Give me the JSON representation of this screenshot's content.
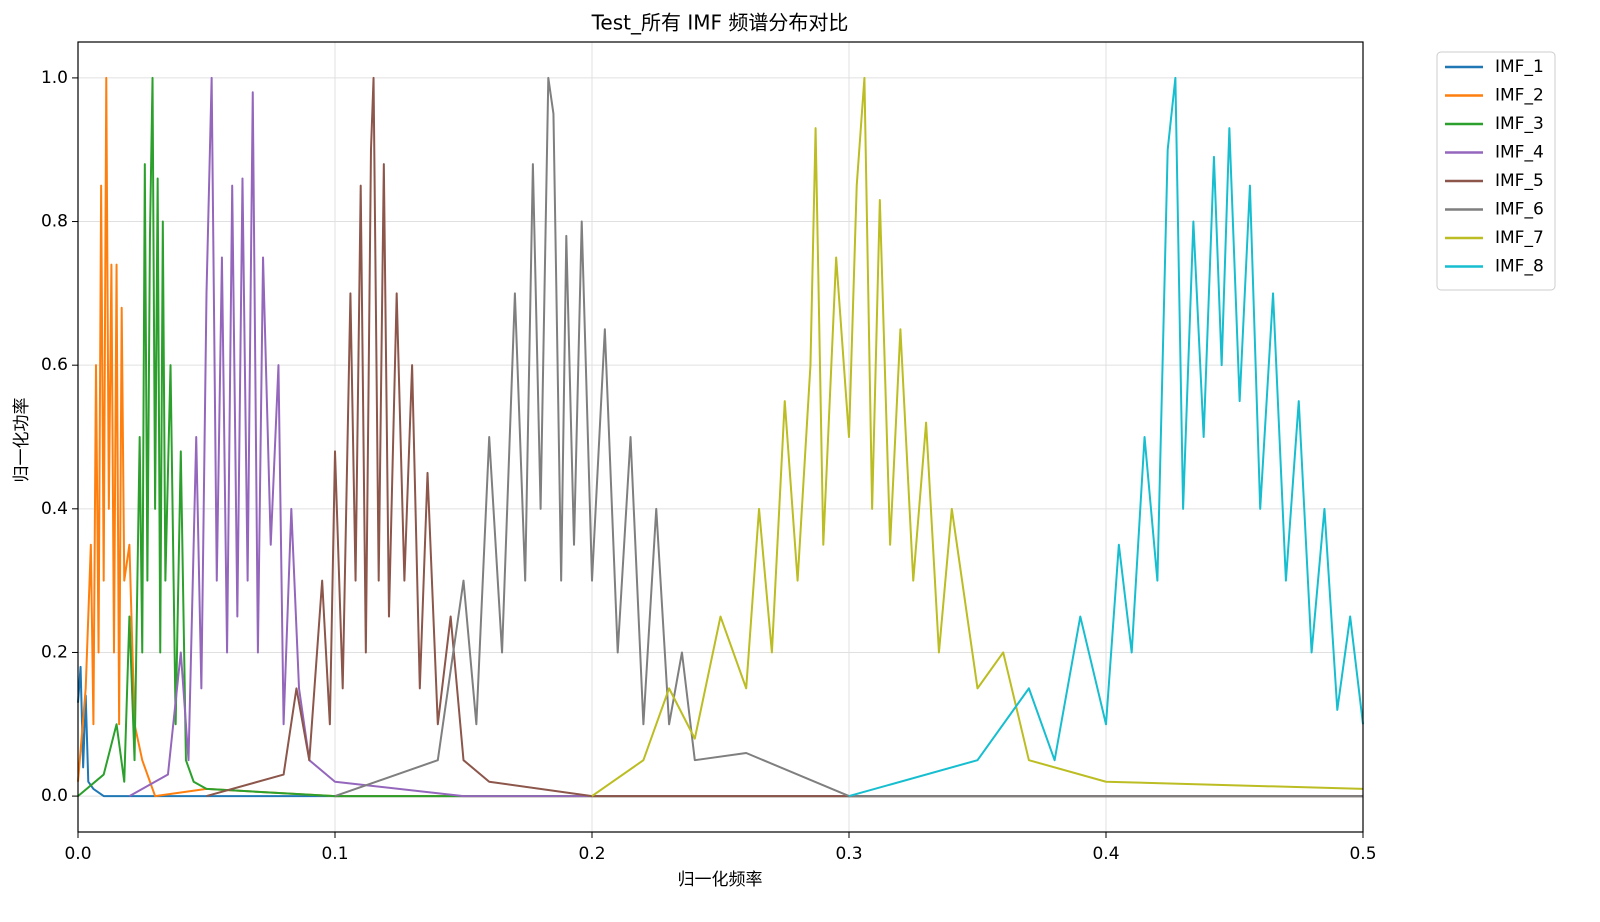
{
  "chart_data": {
    "type": "line",
    "title": "Test_所有 IMF 频谱分布对比",
    "x_label": "归一化频率",
    "y_label": "归一化功率",
    "xlim": [
      0,
      0.5
    ],
    "ylim": [
      -0.05,
      1.05
    ],
    "xticks": [
      {
        "value": 0,
        "label": "0.0"
      },
      0.1,
      0.2,
      0.3,
      0.4,
      0.5
    ],
    "yticks": [
      {
        "value": 0,
        "label": "0.0"
      },
      0.2,
      0.4,
      0.6,
      0.8,
      {
        "value": 1,
        "label": "1.0"
      }
    ],
    "grid": true,
    "legend": "outside upper right",
    "series": [
      {
        "name": "IMF_1",
        "color": "#1f77b4",
        "x": [
          0,
          0.001,
          0.002,
          0.003,
          0.004,
          0.006,
          0.01,
          0.5
        ],
        "values": [
          0.13,
          0.18,
          0.04,
          0.14,
          0.02,
          0.01,
          0,
          0
        ]
      },
      {
        "name": "IMF_2",
        "color": "#ff7f0e",
        "x": [
          0,
          0.003,
          0.005,
          0.006,
          0.007,
          0.008,
          0.009,
          0.01,
          0.011,
          0.012,
          0.013,
          0.014,
          0.015,
          0.016,
          0.017,
          0.018,
          0.02,
          0.022,
          0.025,
          0.03,
          0.05,
          0.1,
          0.5
        ],
        "values": [
          0.02,
          0.15,
          0.35,
          0.1,
          0.6,
          0.2,
          0.85,
          0.3,
          1.0,
          0.4,
          0.74,
          0.2,
          0.74,
          0.1,
          0.68,
          0.3,
          0.35,
          0.1,
          0.05,
          0,
          0.01,
          0,
          0
        ]
      },
      {
        "name": "IMF_3",
        "color": "#2ca02c",
        "x": [
          0,
          0.01,
          0.015,
          0.018,
          0.02,
          0.022,
          0.024,
          0.025,
          0.026,
          0.027,
          0.028,
          0.029,
          0.03,
          0.031,
          0.032,
          0.033,
          0.034,
          0.036,
          0.038,
          0.04,
          0.042,
          0.045,
          0.05,
          0.1,
          0.5
        ],
        "values": [
          0,
          0.03,
          0.1,
          0.02,
          0.25,
          0.05,
          0.5,
          0.2,
          0.88,
          0.3,
          0.78,
          1.0,
          0.4,
          0.86,
          0.2,
          0.8,
          0.3,
          0.6,
          0.1,
          0.48,
          0.05,
          0.02,
          0.01,
          0,
          0
        ]
      },
      {
        "name": "IMF_4",
        "color": "#9467bd",
        "x": [
          0.02,
          0.035,
          0.04,
          0.043,
          0.046,
          0.048,
          0.05,
          0.052,
          0.054,
          0.056,
          0.058,
          0.06,
          0.062,
          0.064,
          0.066,
          0.068,
          0.07,
          0.072,
          0.075,
          0.078,
          0.08,
          0.083,
          0.086,
          0.09,
          0.1,
          0.15,
          0.5
        ],
        "values": [
          0,
          0.03,
          0.2,
          0.05,
          0.5,
          0.15,
          0.7,
          1.0,
          0.3,
          0.75,
          0.2,
          0.85,
          0.25,
          0.86,
          0.3,
          0.98,
          0.2,
          0.75,
          0.35,
          0.6,
          0.1,
          0.4,
          0.15,
          0.05,
          0.02,
          0,
          0
        ]
      },
      {
        "name": "IMF_5",
        "color": "#8c564b",
        "x": [
          0.05,
          0.08,
          0.085,
          0.09,
          0.095,
          0.098,
          0.1,
          0.103,
          0.106,
          0.108,
          0.11,
          0.112,
          0.114,
          0.115,
          0.117,
          0.119,
          0.121,
          0.124,
          0.127,
          0.13,
          0.133,
          0.136,
          0.14,
          0.145,
          0.15,
          0.16,
          0.2,
          0.5
        ],
        "values": [
          0,
          0.03,
          0.15,
          0.05,
          0.3,
          0.1,
          0.48,
          0.15,
          0.7,
          0.3,
          0.85,
          0.2,
          0.9,
          1.0,
          0.3,
          0.88,
          0.25,
          0.7,
          0.3,
          0.6,
          0.15,
          0.45,
          0.1,
          0.25,
          0.05,
          0.02,
          0,
          0
        ]
      },
      {
        "name": "IMF_6",
        "color": "#7f7f7f",
        "x": [
          0.1,
          0.14,
          0.15,
          0.155,
          0.16,
          0.165,
          0.17,
          0.174,
          0.177,
          0.18,
          0.183,
          0.185,
          0.188,
          0.19,
          0.193,
          0.196,
          0.2,
          0.205,
          0.21,
          0.215,
          0.22,
          0.225,
          0.23,
          0.235,
          0.24,
          0.26,
          0.3,
          0.5
        ],
        "values": [
          0,
          0.05,
          0.3,
          0.1,
          0.5,
          0.2,
          0.7,
          0.3,
          0.88,
          0.4,
          1.0,
          0.95,
          0.3,
          0.78,
          0.35,
          0.8,
          0.3,
          0.65,
          0.2,
          0.5,
          0.1,
          0.4,
          0.1,
          0.2,
          0.05,
          0.06,
          0,
          0
        ]
      },
      {
        "name": "IMF_7",
        "color": "#bcbd22",
        "x": [
          0.2,
          0.22,
          0.23,
          0.24,
          0.25,
          0.26,
          0.265,
          0.27,
          0.275,
          0.28,
          0.285,
          0.287,
          0.29,
          0.295,
          0.3,
          0.303,
          0.306,
          0.309,
          0.312,
          0.316,
          0.32,
          0.325,
          0.33,
          0.335,
          0.34,
          0.35,
          0.36,
          0.37,
          0.4,
          0.5
        ],
        "values": [
          0,
          0.05,
          0.15,
          0.08,
          0.25,
          0.15,
          0.4,
          0.2,
          0.55,
          0.3,
          0.6,
          0.93,
          0.35,
          0.75,
          0.5,
          0.85,
          1.0,
          0.4,
          0.83,
          0.35,
          0.65,
          0.3,
          0.52,
          0.2,
          0.4,
          0.15,
          0.2,
          0.05,
          0.02,
          0.01
        ]
      },
      {
        "name": "IMF_8",
        "color": "#17becf",
        "x": [
          0.3,
          0.35,
          0.37,
          0.38,
          0.39,
          0.4,
          0.405,
          0.41,
          0.415,
          0.42,
          0.424,
          0.427,
          0.43,
          0.434,
          0.438,
          0.442,
          0.445,
          0.448,
          0.452,
          0.456,
          0.46,
          0.465,
          0.47,
          0.475,
          0.48,
          0.485,
          0.49,
          0.495,
          0.5
        ],
        "values": [
          0,
          0.05,
          0.15,
          0.05,
          0.25,
          0.1,
          0.35,
          0.2,
          0.5,
          0.3,
          0.9,
          1.0,
          0.4,
          0.8,
          0.5,
          0.89,
          0.6,
          0.93,
          0.55,
          0.85,
          0.4,
          0.7,
          0.3,
          0.55,
          0.2,
          0.4,
          0.12,
          0.25,
          0.1
        ]
      }
    ]
  }
}
